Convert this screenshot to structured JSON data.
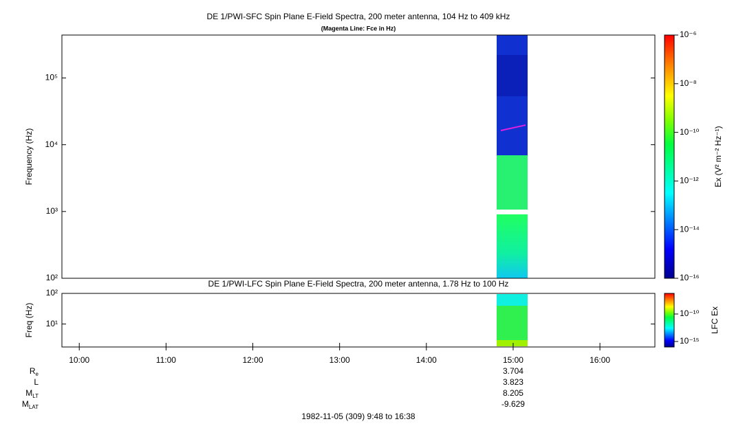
{
  "chart_data": [
    {
      "type": "spectrogram",
      "title": "DE 1/PWI-SFC  Spin Plane E-Field Spectra, 200 meter antenna, 104 Hz to 409 kHz",
      "subtitle": "(Magenta Line: Fce in Hz)",
      "y_label": "Frequency (Hz)",
      "log_y": true,
      "xlim": [
        588,
        998
      ],
      "ylim": [
        100,
        409000
      ],
      "yticks": [
        {
          "value": 100,
          "label": "10²"
        },
        {
          "value": 1000,
          "label": "10³"
        },
        {
          "value": 10000,
          "label": "10⁴"
        },
        {
          "value": 100000,
          "label": "10⁵"
        }
      ],
      "colorbar": {
        "label": "Ex (V² m⁻² Hz⁻¹)",
        "lim": [
          1e-16,
          1e-06
        ],
        "ticks": [
          {
            "value": 1e-16,
            "label": "10⁻¹⁶"
          },
          {
            "value": 1e-14,
            "label": "10⁻¹⁴"
          },
          {
            "value": 1e-12,
            "label": "10⁻¹²"
          },
          {
            "value": 1e-10,
            "label": "10⁻¹⁰"
          },
          {
            "value": 1e-08,
            "label": "10⁻⁸"
          },
          {
            "value": 1e-06,
            "label": "10⁻⁶"
          }
        ]
      }
    },
    {
      "type": "spectrogram",
      "title": "DE 1/PWI-LFC  Spin Plane E-Field Spectra, 200 meter antenna, 1.78 Hz to 100 Hz",
      "y_label": "Freq (Hz)",
      "log_y": true,
      "xlim": [
        588,
        998
      ],
      "ylim": [
        1.78,
        100
      ],
      "yticks": [
        {
          "value": 10,
          "label": "10¹"
        },
        {
          "value": 100,
          "label": "10²"
        }
      ],
      "xticks": [
        {
          "value": 600,
          "label": "10:00"
        },
        {
          "value": 660,
          "label": "11:00"
        },
        {
          "value": 720,
          "label": "12:00"
        },
        {
          "value": 780,
          "label": "13:00"
        },
        {
          "value": 840,
          "label": "14:00"
        },
        {
          "value": 900,
          "label": "15:00"
        },
        {
          "value": 960,
          "label": "16:00"
        }
      ],
      "colorbar": {
        "label": "LFC Ex",
        "lim": [
          1e-16,
          5.6e-07
        ],
        "ticks": [
          {
            "value": 1e-15,
            "label": "10⁻¹⁵"
          },
          {
            "value": 1e-10,
            "label": "10⁻¹⁰"
          }
        ]
      }
    }
  ],
  "ephemeris": {
    "x": 900,
    "rows": [
      {
        "label": "R",
        "sub": "e",
        "value": 3.704
      },
      {
        "label": "L",
        "value": 3.823
      },
      {
        "label": "M",
        "sub": "LT",
        "value": 8.205
      },
      {
        "label": "M",
        "sub": "LAT",
        "value": -9.629
      }
    ]
  },
  "footer": "1982-11-05 (309) 9:48 to 16:38"
}
